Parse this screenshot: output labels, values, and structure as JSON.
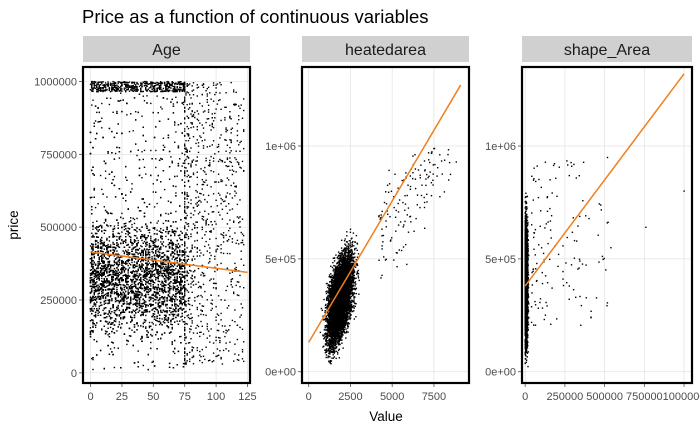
{
  "title": "Price as a function of continuous variables",
  "colors": {
    "points": "#000000",
    "trend": "#f07f1e",
    "strip": "#d0d0d0",
    "grid": "#e2e2e2"
  },
  "chart_data": {
    "type": "scatter",
    "title": "Price as a function of continuous variables",
    "xlabel": "Value",
    "ylabel": "price",
    "facet_scales": "free",
    "grid": true,
    "panels": [
      {
        "name": "Age",
        "x_ticks": [
          {
            "value": 0,
            "label": "0"
          },
          {
            "value": 25,
            "label": "25"
          },
          {
            "value": 50,
            "label": "50"
          },
          {
            "value": 75,
            "label": "75"
          },
          {
            "value": 100,
            "label": "100"
          },
          {
            "value": 125,
            "label": "125"
          }
        ],
        "y_ticks": [
          {
            "value": 0,
            "label": "0"
          },
          {
            "value": 250000,
            "label": "250000"
          },
          {
            "value": 500000,
            "label": "500000"
          },
          {
            "value": 750000,
            "label": "750000"
          },
          {
            "value": 1000000,
            "label": "1000000"
          }
        ],
        "xlim": [
          -6,
          127
        ],
        "ylim": [
          -35000,
          1050000
        ],
        "trend": {
          "x": [
            0,
            125
          ],
          "y": [
            415000,
            345000
          ]
        },
        "cloud": {
          "x_range": [
            0,
            122
          ],
          "y_range": [
            5000,
            1000000
          ],
          "density": "high, thinning beyond x=75"
        }
      },
      {
        "name": "heatedarea",
        "x_ticks": [
          {
            "value": 0,
            "label": "0"
          },
          {
            "value": 2500,
            "label": "2500"
          },
          {
            "value": 5000,
            "label": "5000"
          },
          {
            "value": 7500,
            "label": "7500"
          }
        ],
        "y_ticks": [
          {
            "value": 0,
            "label": "0e+00"
          },
          {
            "value": 500000,
            "label": "5e+05"
          },
          {
            "value": 1000000,
            "label": "1e+06"
          }
        ],
        "xlim": [
          -400,
          9600
        ],
        "ylim": [
          -50000,
          1350000
        ],
        "trend": {
          "x": [
            0,
            9100
          ],
          "y": [
            130000,
            1270000
          ]
        },
        "cloud": {
          "x_range": [
            300,
            5500
          ],
          "y_range": [
            5000,
            1000000
          ],
          "density": "high, positively correlated"
        }
      },
      {
        "name": "shape_Area",
        "x_ticks": [
          {
            "value": 0,
            "label": "0"
          },
          {
            "value": 250000,
            "label": "250000"
          },
          {
            "value": 500000,
            "label": "500000"
          },
          {
            "value": 750000,
            "label": "750000"
          },
          {
            "value": 1000000,
            "label": "1000000"
          }
        ],
        "y_ticks": [
          {
            "value": 0,
            "label": "0e+00"
          },
          {
            "value": 500000,
            "label": "5e+05"
          },
          {
            "value": 1000000,
            "label": "1e+06"
          }
        ],
        "xlim": [
          -20000,
          1050000
        ],
        "ylim": [
          -50000,
          1350000
        ],
        "trend": {
          "x": [
            0,
            1000000
          ],
          "y": [
            380000,
            1320000
          ]
        },
        "cloud": {
          "x_range": [
            0,
            40000
          ],
          "y_range": [
            5000,
            1000000
          ],
          "density": "high near x=0, sparse outliers to x=1000000"
        }
      }
    ]
  }
}
